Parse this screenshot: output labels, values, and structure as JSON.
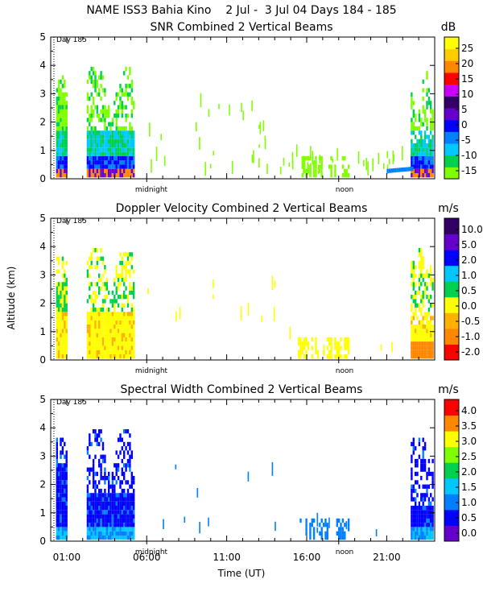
{
  "header": {
    "title": "NAME ISS3 Bahia Kino    2 Jul -  3 Jul 04 Days 184 - 185"
  },
  "axes": {
    "ylabel": "Altitude (km)",
    "xlabel": "Time (UT)",
    "x_ticks": [
      "01:00",
      "06:00",
      "11:00",
      "16:00",
      "21:00"
    ],
    "y_ticks": [
      "0",
      "1",
      "2",
      "3",
      "4",
      "5"
    ],
    "day_label": "Day 185",
    "midnight_label": "midnight",
    "noon_label": "noon"
  },
  "colors": {
    "snr": [
      "#7fff00",
      "#00d050",
      "#00c8ff",
      "#0080ff",
      "#0000ff",
      "#6600cc",
      "#330066",
      "#cc00ff",
      "#ff0000",
      "#ff8800",
      "#ffcc00",
      "#ffff00"
    ],
    "doppler": [
      "#ff0000",
      "#ff8800",
      "#ffb000",
      "#ffff00",
      "#00d050",
      "#00c8ff",
      "#0000ff",
      "#6600cc",
      "#330066"
    ],
    "width": [
      "#6600cc",
      "#0000ff",
      "#0080ff",
      "#00c8ff",
      "#00d050",
      "#7fff00",
      "#ffff00",
      "#ff8800",
      "#ff0000"
    ]
  },
  "chart_data": [
    {
      "type": "heatmap",
      "title": "SNR Combined 2 Vertical Beams",
      "unit": "dB",
      "colorbar_ticks": [
        "25",
        "20",
        "15",
        "10",
        "5",
        "0",
        "-5",
        "-10",
        "-15"
      ],
      "ylim": [
        0,
        5
      ],
      "xlim_hours_ut": [
        0,
        24
      ]
    },
    {
      "type": "heatmap",
      "title": "Doppler Velocity Combined 2 Vertical Beams",
      "unit": "m/s",
      "colorbar_ticks": [
        "10.0",
        "5.0",
        "2.0",
        "1.0",
        "0.5",
        "0.0",
        "-0.5",
        "-1.0",
        "-2.0"
      ],
      "ylim": [
        0,
        5
      ],
      "xlim_hours_ut": [
        0,
        24
      ]
    },
    {
      "type": "heatmap",
      "title": "Spectral Width Combined 2 Vertical Beams",
      "unit": "m/s",
      "colorbar_ticks": [
        "4.0",
        "3.5",
        "3.0",
        "2.5",
        "2.0",
        "1.5",
        "1.0",
        "0.5",
        "0.0"
      ],
      "ylim": [
        0,
        5
      ],
      "xlim_hours_ut": [
        0,
        24
      ]
    }
  ]
}
